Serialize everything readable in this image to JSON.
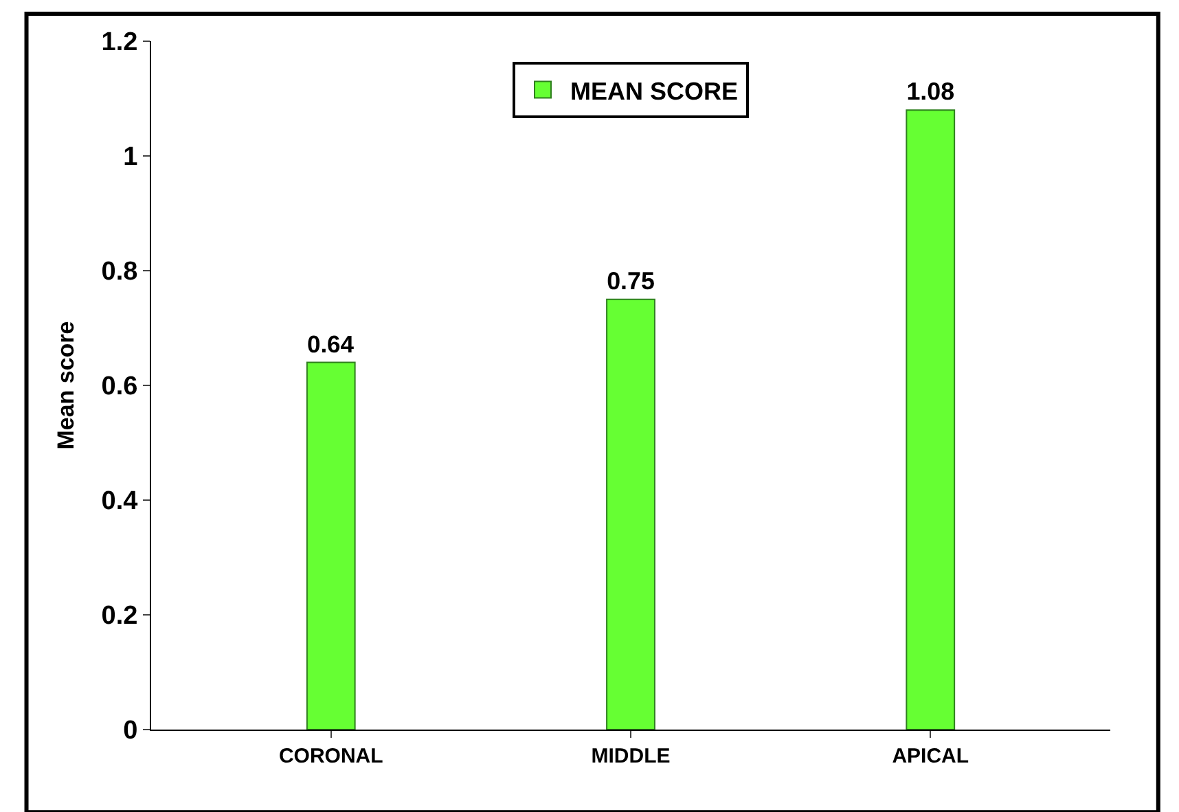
{
  "chart_data": {
    "type": "bar",
    "ylabel": "Mean score",
    "categories": [
      "CORONAL",
      "MIDDLE",
      "APICAL"
    ],
    "series": [
      {
        "name": "MEAN SCORE",
        "color": "#66ff33",
        "values": [
          0.64,
          0.75,
          1.08
        ]
      }
    ],
    "ylim": [
      0,
      1.2
    ],
    "yticks": [
      0,
      0.2,
      0.4,
      0.6,
      0.8,
      1,
      1.2
    ],
    "data_labels": true,
    "legend": "top"
  }
}
